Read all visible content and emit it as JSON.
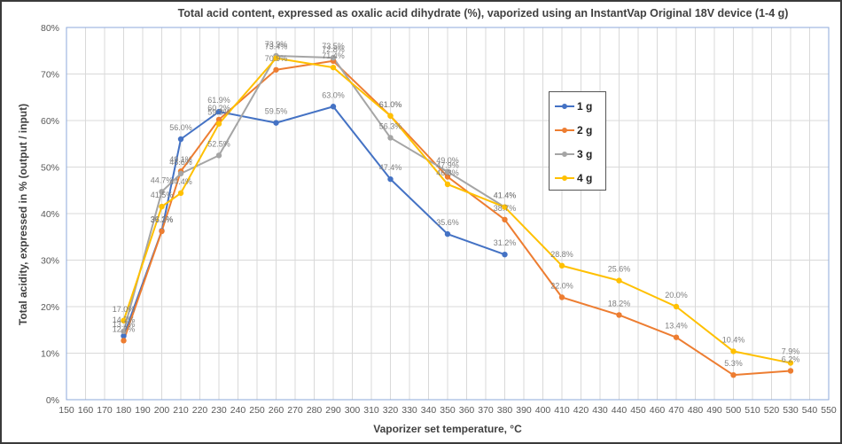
{
  "chart_data": {
    "type": "line",
    "title": "Total acid content, expressed as oxalic acid dihydrate (%), vaporized using an InstantVap Original 18V device (1-4 g)",
    "xlabel": "Vaporizer set temperature, °C",
    "ylabel": "Total acidity, expressed in % (output / input)",
    "xlim": [
      150,
      550
    ],
    "ylim": [
      0,
      80
    ],
    "x_ticks": [
      150,
      160,
      170,
      180,
      190,
      200,
      210,
      220,
      230,
      240,
      250,
      260,
      270,
      280,
      290,
      300,
      310,
      320,
      330,
      340,
      350,
      360,
      370,
      380,
      390,
      400,
      410,
      420,
      430,
      440,
      450,
      460,
      470,
      480,
      490,
      500,
      510,
      520,
      530,
      540,
      550
    ],
    "y_ticks": [
      0,
      10,
      20,
      30,
      40,
      50,
      60,
      70,
      80
    ],
    "y_tick_labels": [
      "0%",
      "10%",
      "20%",
      "30%",
      "40%",
      "50%",
      "60%",
      "70%",
      "80%"
    ],
    "grid": true,
    "legend_position": "right-center",
    "series": [
      {
        "name": "1 g",
        "color": "#4472C4",
        "x": [
          180,
          200,
          210,
          230,
          260,
          290,
          320,
          350,
          380
        ],
        "values": [
          13.7,
          36.3,
          56.0,
          61.9,
          59.5,
          63.0,
          47.4,
          35.6,
          31.2
        ],
        "labels": [
          "13.7%",
          "36.3%",
          "56.0%",
          "61.9%",
          "59.5%",
          "63.0%",
          "47.4%",
          "35.6%",
          "31.2%"
        ]
      },
      {
        "name": "2 g",
        "color": "#ED7D31",
        "x": [
          180,
          200,
          210,
          230,
          260,
          290,
          320,
          350,
          380,
          410,
          440,
          470,
          500,
          530
        ],
        "values": [
          12.7,
          36.2,
          49.1,
          60.2,
          70.9,
          72.8,
          61.0,
          47.9,
          38.7,
          22.0,
          18.2,
          13.4,
          5.3,
          6.2
        ],
        "labels": [
          "12.7%",
          "36.2%",
          "49.1%",
          "60.2%",
          "70.9%",
          "72.8%",
          "61.0%",
          "47.9%",
          "38.7%",
          "22.0%",
          "18.2%",
          "13.4%",
          "5.3%",
          "6.2%"
        ]
      },
      {
        "name": "3 g",
        "color": "#A5A5A5",
        "x": [
          180,
          200,
          210,
          230,
          260,
          290,
          320,
          350,
          380
        ],
        "values": [
          14.7,
          44.7,
          48.6,
          52.5,
          73.9,
          73.5,
          56.3,
          49.0,
          41.4
        ],
        "labels": [
          "14.7%",
          "44.7%",
          "48.6%",
          "52.5%",
          "73.9%",
          "73.5%",
          "56.3%",
          "49.0%",
          "41.4%"
        ]
      },
      {
        "name": "4 g",
        "color": "#FFC000",
        "x": [
          180,
          200,
          210,
          230,
          260,
          290,
          320,
          350,
          380,
          410,
          440,
          470,
          500,
          530
        ],
        "values": [
          17.0,
          41.5,
          44.4,
          59.3,
          73.4,
          71.4,
          61.0,
          46.3,
          41.4,
          28.8,
          25.6,
          20.0,
          10.4,
          7.9
        ],
        "labels": [
          "17.0%",
          "41.5%",
          "44.4%",
          "59.3%",
          "73.4%",
          "71.4%",
          "61.0%",
          "46.3%",
          "41.4%",
          "28.8%",
          "25.6%",
          "20.0%",
          "10.4%",
          "7.9%"
        ]
      }
    ]
  }
}
